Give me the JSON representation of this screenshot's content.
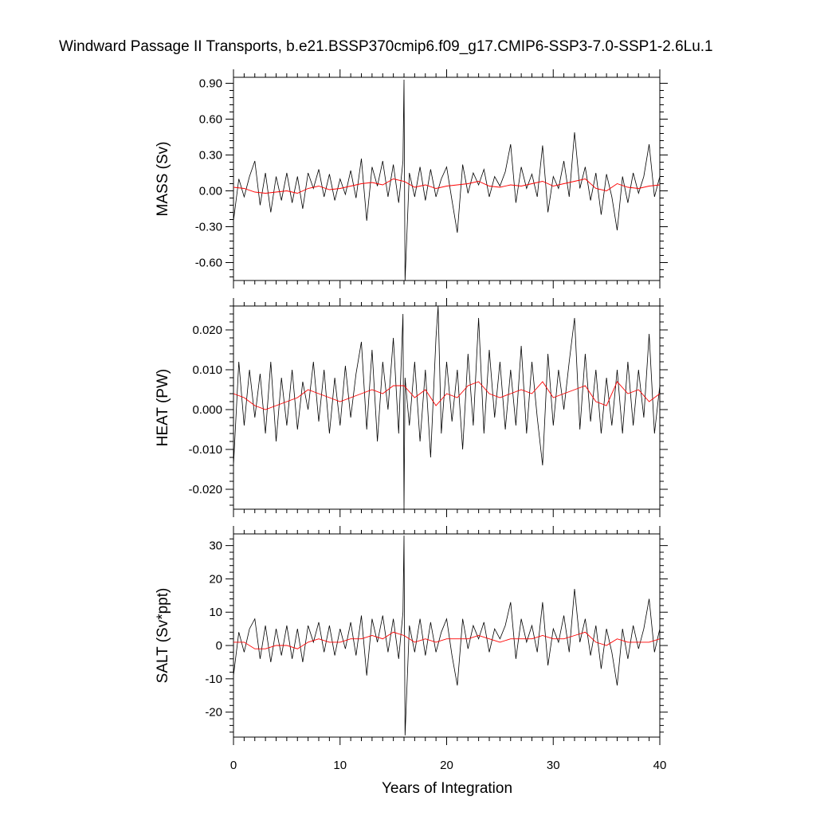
{
  "title": "Windward Passage II Transports, b.e21.BSSP370cmip6.f09_g17.CMIP6-SSP3-7.0-SSP1-2.6Lu.1",
  "chart_data": [
    {
      "type": "line",
      "ylabel": "MASS (Sv)",
      "xlabel": "",
      "xlim": [
        0,
        40
      ],
      "ylim": [
        -0.75,
        0.95
      ],
      "yticks": [
        -0.6,
        -0.3,
        0.0,
        0.3,
        0.6,
        0.9
      ],
      "ytick_labels": [
        "-0.60",
        "-0.30",
        "0.00",
        "0.30",
        "0.60",
        "0.90"
      ],
      "xticks": [
        0,
        10,
        20,
        30,
        40
      ],
      "series": [
        {
          "color": "#000000",
          "x": [
            0,
            0.5,
            1,
            1.5,
            2,
            2.5,
            3,
            3.5,
            4,
            4.5,
            5,
            5.5,
            6,
            6.5,
            7,
            7.5,
            8,
            8.5,
            9,
            9.5,
            10,
            10.5,
            11,
            11.5,
            12,
            12.5,
            13,
            13.5,
            14,
            14.5,
            15,
            15.5,
            15.9,
            16.0,
            16.1,
            16.5,
            17,
            17.5,
            18,
            18.5,
            19,
            19.5,
            20,
            20.5,
            21,
            21.5,
            22,
            22.5,
            23,
            23.5,
            24,
            24.5,
            25,
            25.5,
            26,
            26.5,
            27,
            27.5,
            28,
            28.5,
            29,
            29.5,
            30,
            30.5,
            31,
            31.5,
            32,
            32.5,
            33,
            33.5,
            34,
            34.5,
            35,
            35.5,
            36,
            36.5,
            37,
            37.5,
            38,
            38.5,
            39,
            39.5,
            40
          ],
          "y": [
            -0.25,
            0.1,
            -0.05,
            0.12,
            0.25,
            -0.12,
            0.15,
            -0.18,
            0.12,
            -0.08,
            0.15,
            -0.1,
            0.12,
            -0.15,
            0.15,
            0.02,
            0.18,
            -0.05,
            0.14,
            -0.08,
            0.1,
            -0.03,
            0.17,
            -0.06,
            0.27,
            -0.25,
            0.2,
            0.04,
            0.25,
            -0.05,
            0.22,
            -0.1,
            0.25,
            0.93,
            -0.75,
            0.15,
            -0.05,
            0.2,
            -0.08,
            0.18,
            -0.05,
            0.1,
            0.2,
            -0.08,
            -0.35,
            0.22,
            -0.02,
            0.15,
            0.05,
            0.18,
            -0.05,
            0.12,
            0.04,
            0.16,
            0.39,
            -0.1,
            0.2,
            0.02,
            0.14,
            -0.05,
            0.38,
            -0.18,
            0.12,
            0.02,
            0.25,
            -0.05,
            0.49,
            0.02,
            0.2,
            -0.08,
            0.15,
            -0.2,
            0.14,
            -0.05,
            -0.33,
            0.12,
            -0.1,
            0.15,
            -0.02,
            0.12,
            0.39,
            -0.05,
            0.12
          ]
        },
        {
          "color": "#ff0000",
          "x": [
            0,
            1,
            2,
            3,
            4,
            5,
            6,
            7,
            8,
            9,
            10,
            11,
            12,
            13,
            14,
            15,
            16,
            17,
            18,
            19,
            20,
            21,
            22,
            23,
            24,
            25,
            26,
            27,
            28,
            29,
            30,
            31,
            32,
            33,
            34,
            35,
            36,
            37,
            38,
            39,
            40
          ],
          "y": [
            0.03,
            0.02,
            -0.01,
            -0.02,
            -0.01,
            0.0,
            -0.02,
            0.02,
            0.04,
            0.01,
            0.02,
            0.04,
            0.06,
            0.07,
            0.05,
            0.1,
            0.08,
            0.03,
            0.05,
            0.02,
            0.04,
            0.05,
            0.06,
            0.08,
            0.04,
            0.03,
            0.05,
            0.04,
            0.06,
            0.08,
            0.04,
            0.06,
            0.08,
            0.1,
            0.02,
            0.0,
            0.06,
            0.03,
            0.02,
            0.04,
            0.05
          ]
        }
      ]
    },
    {
      "type": "line",
      "ylabel": "HEAT (PW)",
      "xlabel": "",
      "xlim": [
        0,
        40
      ],
      "ylim": [
        -0.025,
        0.026
      ],
      "yticks": [
        -0.02,
        -0.01,
        0.0,
        0.01,
        0.02
      ],
      "ytick_labels": [
        "-0.020",
        "-0.010",
        "0.000",
        "0.010",
        "0.020"
      ],
      "xticks": [
        0,
        10,
        20,
        30,
        40
      ],
      "series": [
        {
          "color": "#000000",
          "x": [
            0,
            0.5,
            1,
            1.5,
            2,
            2.5,
            3,
            3.5,
            4,
            4.5,
            5,
            5.5,
            6,
            6.5,
            7,
            7.5,
            8,
            8.5,
            9,
            9.5,
            10,
            10.5,
            11,
            11.5,
            12,
            12.5,
            13,
            13.5,
            14,
            14.5,
            15,
            15.5,
            15.9,
            16.0,
            16.1,
            16.5,
            17,
            17.5,
            18,
            18.5,
            19,
            19.2,
            19.5,
            20,
            20.5,
            21,
            21.5,
            22,
            22.5,
            23,
            23.5,
            24,
            24.5,
            25,
            25.5,
            26,
            26.5,
            27,
            27.5,
            28,
            28.5,
            29,
            29.5,
            30,
            30.5,
            31,
            31.5,
            32,
            32.5,
            33,
            33.5,
            34,
            34.5,
            35,
            35.5,
            36,
            36.5,
            37,
            37.5,
            38,
            38.5,
            39,
            39.5,
            40
          ],
          "y": [
            -0.014,
            0.012,
            -0.004,
            0.01,
            -0.002,
            0.009,
            -0.006,
            0.012,
            -0.008,
            0.008,
            -0.004,
            0.01,
            -0.005,
            0.007,
            0.0,
            0.012,
            -0.003,
            0.01,
            -0.006,
            0.008,
            -0.004,
            0.011,
            -0.002,
            0.009,
            0.017,
            -0.005,
            0.015,
            -0.008,
            0.012,
            0.0,
            0.018,
            -0.006,
            0.024,
            -0.025,
            0.008,
            -0.004,
            0.012,
            -0.008,
            0.01,
            -0.012,
            0.018,
            0.026,
            -0.006,
            0.012,
            -0.003,
            0.01,
            -0.01,
            0.014,
            -0.004,
            0.023,
            -0.006,
            0.015,
            -0.002,
            0.012,
            -0.005,
            0.01,
            -0.004,
            0.016,
            -0.006,
            0.012,
            -0.002,
            -0.014,
            0.014,
            -0.004,
            0.01,
            0.0,
            0.012,
            0.023,
            -0.005,
            0.014,
            -0.003,
            0.01,
            -0.006,
            0.008,
            -0.004,
            0.01,
            -0.006,
            0.012,
            -0.004,
            0.01,
            -0.002,
            0.019,
            -0.006,
            0.006
          ]
        },
        {
          "color": "#ff0000",
          "x": [
            0,
            1,
            2,
            3,
            4,
            5,
            6,
            7,
            8,
            9,
            10,
            11,
            12,
            13,
            14,
            15,
            16,
            17,
            18,
            19,
            20,
            21,
            22,
            23,
            24,
            25,
            26,
            27,
            28,
            29,
            30,
            31,
            32,
            33,
            34,
            35,
            36,
            37,
            38,
            39,
            40
          ],
          "y": [
            0.004,
            0.003,
            0.001,
            0.0,
            0.001,
            0.002,
            0.003,
            0.005,
            0.004,
            0.003,
            0.002,
            0.003,
            0.004,
            0.005,
            0.004,
            0.006,
            0.006,
            0.003,
            0.005,
            0.001,
            0.004,
            0.003,
            0.006,
            0.007,
            0.004,
            0.003,
            0.004,
            0.005,
            0.004,
            0.007,
            0.003,
            0.004,
            0.005,
            0.006,
            0.002,
            0.001,
            0.007,
            0.004,
            0.005,
            0.002,
            0.004
          ]
        }
      ]
    },
    {
      "type": "line",
      "ylabel": "SALT (Sv*ppt)",
      "xlabel": "Years of Integration",
      "xlim": [
        0,
        40
      ],
      "ylim": [
        -27.5,
        33.5
      ],
      "yticks": [
        -20,
        -10,
        0,
        10,
        20,
        30
      ],
      "ytick_labels": [
        "-20",
        "-10",
        "0",
        "10",
        "20",
        "30"
      ],
      "xticks": [
        0,
        10,
        20,
        30,
        40
      ],
      "xtick_labels": [
        "0",
        "10",
        "20",
        "30",
        "40"
      ],
      "series": [
        {
          "color": "#000000",
          "x": [
            0,
            0.5,
            1,
            1.5,
            2,
            2.5,
            3,
            3.5,
            4,
            4.5,
            5,
            5.5,
            6,
            6.5,
            7,
            7.5,
            8,
            8.5,
            9,
            9.5,
            10,
            10.5,
            11,
            11.5,
            12,
            12.5,
            13,
            13.5,
            14,
            14.5,
            15,
            15.5,
            15.9,
            16.0,
            16.1,
            16.5,
            17,
            17.5,
            18,
            18.5,
            19,
            19.5,
            20,
            20.5,
            21,
            21.5,
            22,
            22.5,
            23,
            23.5,
            24,
            24.5,
            25,
            25.5,
            26,
            26.5,
            27,
            27.5,
            28,
            28.5,
            29,
            29.5,
            30,
            30.5,
            31,
            31.5,
            32,
            32.5,
            33,
            33.5,
            34,
            34.5,
            35,
            35.5,
            36,
            36.5,
            37,
            37.5,
            38,
            38.5,
            39,
            39.5,
            40
          ],
          "y": [
            -9,
            4,
            -2,
            5,
            8,
            -4,
            6,
            -5,
            5,
            -3,
            6,
            -4,
            5,
            -5,
            6,
            1,
            7,
            -2,
            6,
            -3,
            5,
            -1,
            7,
            -3,
            9,
            -9,
            8,
            1,
            9,
            -2,
            8,
            -4,
            10,
            33,
            -27,
            6,
            -2,
            8,
            -3,
            7,
            -2,
            4,
            8,
            -3,
            -12,
            8,
            -1,
            6,
            2,
            7,
            -2,
            5,
            2,
            6,
            13,
            -4,
            8,
            1,
            6,
            -2,
            13,
            -6,
            5,
            1,
            9,
            -2,
            17,
            1,
            8,
            -3,
            6,
            -7,
            5,
            -2,
            -12,
            5,
            -4,
            6,
            -1,
            5,
            14,
            -2,
            5
          ]
        },
        {
          "color": "#ff0000",
          "x": [
            0,
            1,
            2,
            3,
            4,
            5,
            6,
            7,
            8,
            9,
            10,
            11,
            12,
            13,
            14,
            15,
            16,
            17,
            18,
            19,
            20,
            21,
            22,
            23,
            24,
            25,
            26,
            27,
            28,
            29,
            30,
            31,
            32,
            33,
            34,
            35,
            36,
            37,
            38,
            39,
            40
          ],
          "y": [
            1,
            1,
            -1,
            -1,
            0,
            0,
            -1,
            1,
            2,
            1,
            1,
            2,
            2,
            3,
            2,
            4,
            3,
            1,
            2,
            1,
            2,
            2,
            2,
            3,
            2,
            1,
            2,
            2,
            2,
            3,
            2,
            2,
            3,
            4,
            1,
            0,
            2,
            1,
            1,
            1,
            2
          ]
        }
      ]
    }
  ]
}
